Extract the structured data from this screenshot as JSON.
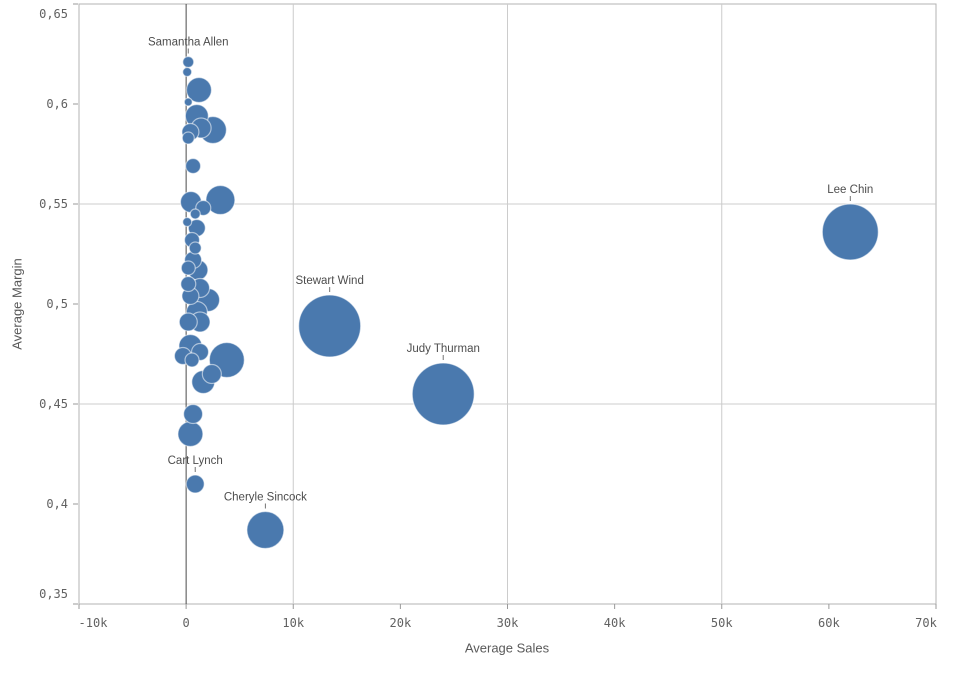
{
  "chart_data": {
    "type": "scatter",
    "xlabel": "Average Sales",
    "ylabel": "Average Margin",
    "decimal_separator": ",",
    "legend": "none",
    "grid": "on",
    "x_axis": {
      "min": -10000,
      "max": 70000,
      "tick_values": [
        -10000,
        0,
        10000,
        20000,
        30000,
        40000,
        50000,
        60000,
        70000
      ],
      "tick_labels": [
        "-10k",
        "0",
        "10k",
        "20k",
        "30k",
        "40k",
        "50k",
        "60k",
        "70k"
      ],
      "gridline_values": [
        10000,
        30000,
        50000
      ],
      "zero_line": 0
    },
    "y_axis": {
      "min": 0.35,
      "max": 0.65,
      "tick_values": [
        0.65,
        0.6,
        0.55,
        0.5,
        0.45,
        0.4,
        0.35
      ],
      "tick_labels": [
        "0,65",
        "0,6",
        "0,55",
        "0,5",
        "0,45",
        "0,4",
        "0,35"
      ],
      "gridline_values": [
        0.55,
        0.45
      ]
    },
    "points": [
      {
        "name": "Samantha Allen",
        "sales": 200,
        "margin": 0.621,
        "r": 5.5
      },
      {
        "name": null,
        "sales": 100,
        "margin": 0.616,
        "r": 4.5
      },
      {
        "name": null,
        "sales": 1200,
        "margin": 0.607,
        "r": 12.5
      },
      {
        "name": null,
        "sales": 200,
        "margin": 0.601,
        "r": 4
      },
      {
        "name": null,
        "sales": 1000,
        "margin": 0.594,
        "r": 11.5
      },
      {
        "name": null,
        "sales": 1400,
        "margin": 0.588,
        "r": 10
      },
      {
        "name": null,
        "sales": 2500,
        "margin": 0.587,
        "r": 13.5
      },
      {
        "name": null,
        "sales": 400,
        "margin": 0.586,
        "r": 8.5
      },
      {
        "name": null,
        "sales": 200,
        "margin": 0.583,
        "r": 6
      },
      {
        "name": null,
        "sales": 650,
        "margin": 0.569,
        "r": 7.5
      },
      {
        "name": null,
        "sales": 450,
        "margin": 0.551,
        "r": 10.5
      },
      {
        "name": null,
        "sales": 3200,
        "margin": 0.552,
        "r": 14.5
      },
      {
        "name": null,
        "sales": 1600,
        "margin": 0.548,
        "r": 7.5
      },
      {
        "name": null,
        "sales": 850,
        "margin": 0.545,
        "r": 5
      },
      {
        "name": null,
        "sales": 100,
        "margin": 0.541,
        "r": 4.5
      },
      {
        "name": null,
        "sales": 1000,
        "margin": 0.538,
        "r": 8.5
      },
      {
        "name": null,
        "sales": 550,
        "margin": 0.532,
        "r": 7.5
      },
      {
        "name": null,
        "sales": 850,
        "margin": 0.528,
        "r": 6
      },
      {
        "name": null,
        "sales": 650,
        "margin": 0.522,
        "r": 8.5
      },
      {
        "name": null,
        "sales": 200,
        "margin": 0.518,
        "r": 7
      },
      {
        "name": null,
        "sales": 1100,
        "margin": 0.517,
        "r": 10
      },
      {
        "name": null,
        "sales": 200,
        "margin": 0.51,
        "r": 7.5
      },
      {
        "name": null,
        "sales": 1300,
        "margin": 0.508,
        "r": 9.5
      },
      {
        "name": null,
        "sales": 400,
        "margin": 0.504,
        "r": 8.5
      },
      {
        "name": null,
        "sales": 2050,
        "margin": 0.502,
        "r": 11.5
      },
      {
        "name": null,
        "sales": 1000,
        "margin": 0.496,
        "r": 10.5
      },
      {
        "name": null,
        "sales": 200,
        "margin": 0.491,
        "r": 9
      },
      {
        "name": null,
        "sales": 1300,
        "margin": 0.491,
        "r": 10
      },
      {
        "name": null,
        "sales": 400,
        "margin": 0.479,
        "r": 11.5
      },
      {
        "name": null,
        "sales": -300,
        "margin": 0.474,
        "r": 8.5
      },
      {
        "name": null,
        "sales": 1300,
        "margin": 0.476,
        "r": 8.5
      },
      {
        "name": null,
        "sales": 550,
        "margin": 0.472,
        "r": 7
      },
      {
        "name": null,
        "sales": 3800,
        "margin": 0.472,
        "r": 17.5
      },
      {
        "name": null,
        "sales": 2400,
        "margin": 0.465,
        "r": 9.5
      },
      {
        "name": null,
        "sales": 1600,
        "margin": 0.461,
        "r": 11.5
      },
      {
        "name": null,
        "sales": 650,
        "margin": 0.445,
        "r": 9.5
      },
      {
        "name": null,
        "sales": 400,
        "margin": 0.435,
        "r": 12.5
      },
      {
        "name": "Cart Lynch",
        "sales": 850,
        "margin": 0.41,
        "r": 9
      },
      {
        "name": "Cheryle Sincock",
        "sales": 7400,
        "margin": 0.387,
        "r": 18.5
      },
      {
        "name": "Stewart Wind",
        "sales": 13400,
        "margin": 0.489,
        "r": 31
      },
      {
        "name": "Judy Thurman",
        "sales": 24000,
        "margin": 0.455,
        "r": 31
      },
      {
        "name": "Lee Chin",
        "sales": 62000,
        "margin": 0.536,
        "r": 28
      }
    ],
    "colors": {
      "bubble_fill": "#4a79ae",
      "bubble_stroke": "rgba(255,255,255,0.55)",
      "gridline": "#cccccc",
      "plot_border": "#b3b3b3",
      "zero_axis": "#4a4a4a",
      "tick_mark": "#999999",
      "tick_text": "#616161",
      "axis_title_text": "#595959",
      "point_label_text": "#4d4d4d",
      "label_connector": "#737373",
      "background": "#ffffff"
    }
  }
}
